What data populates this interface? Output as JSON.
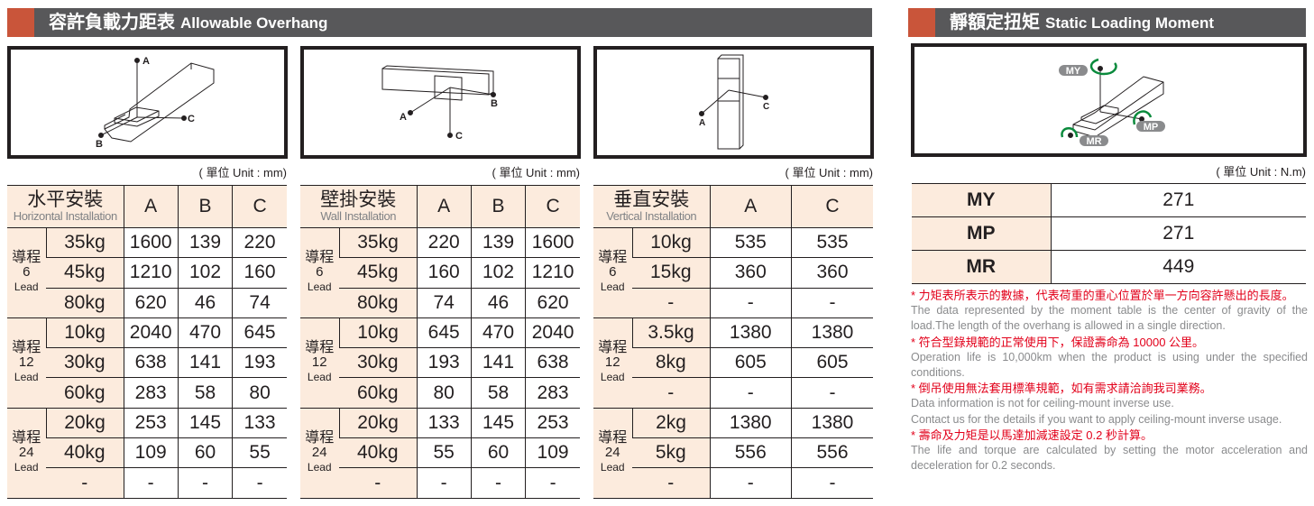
{
  "left_title": {
    "zh": "容許負載力距表",
    "en": "Allowable Overhang"
  },
  "right_title": {
    "zh": "靜額定扭矩",
    "en": "Static Loading Moment"
  },
  "unit_mm": "( 單位 Unit : mm)",
  "unit_nm": "( 單位 Unit : N.m)",
  "diagram_labels": {
    "a": "A",
    "b": "B",
    "c": "C",
    "my": "MY",
    "mp": "MP",
    "mr": "MR"
  },
  "lead_zh": "導程",
  "lead_en": "Lead",
  "tables": [
    {
      "zh": "水平安裝",
      "en": "Horizontal Installation",
      "cols": [
        "A",
        "B",
        "C"
      ],
      "groups": [
        {
          "lead": "6",
          "rows": [
            [
              "35kg",
              "1600",
              "139",
              "220"
            ],
            [
              "45kg",
              "1210",
              "102",
              "160"
            ],
            [
              "80kg",
              "620",
              "46",
              "74"
            ]
          ]
        },
        {
          "lead": "12",
          "rows": [
            [
              "10kg",
              "2040",
              "470",
              "645"
            ],
            [
              "30kg",
              "638",
              "141",
              "193"
            ],
            [
              "60kg",
              "283",
              "58",
              "80"
            ]
          ]
        },
        {
          "lead": "24",
          "rows": [
            [
              "20kg",
              "253",
              "145",
              "133"
            ],
            [
              "40kg",
              "109",
              "60",
              "55"
            ],
            [
              "-",
              "-",
              "-",
              "-"
            ]
          ]
        }
      ]
    },
    {
      "zh": "壁掛安裝",
      "en": "Wall Installation",
      "cols": [
        "A",
        "B",
        "C"
      ],
      "groups": [
        {
          "lead": "6",
          "rows": [
            [
              "35kg",
              "220",
              "139",
              "1600"
            ],
            [
              "45kg",
              "160",
              "102",
              "1210"
            ],
            [
              "80kg",
              "74",
              "46",
              "620"
            ]
          ]
        },
        {
          "lead": "12",
          "rows": [
            [
              "10kg",
              "645",
              "470",
              "2040"
            ],
            [
              "30kg",
              "193",
              "141",
              "638"
            ],
            [
              "60kg",
              "80",
              "58",
              "283"
            ]
          ]
        },
        {
          "lead": "24",
          "rows": [
            [
              "20kg",
              "133",
              "145",
              "253"
            ],
            [
              "40kg",
              "55",
              "60",
              "109"
            ],
            [
              "-",
              "-",
              "-",
              "-"
            ]
          ]
        }
      ]
    },
    {
      "zh": "垂直安裝",
      "en": "Vertical Installation",
      "cols": [
        "A",
        "C"
      ],
      "groups": [
        {
          "lead": "6",
          "rows": [
            [
              "10kg",
              "535",
              "535"
            ],
            [
              "15kg",
              "360",
              "360"
            ],
            [
              "-",
              "-",
              "-"
            ]
          ]
        },
        {
          "lead": "12",
          "rows": [
            [
              "3.5kg",
              "1380",
              "1380"
            ],
            [
              "8kg",
              "605",
              "605"
            ],
            [
              "-",
              "-",
              "-"
            ]
          ]
        },
        {
          "lead": "24",
          "rows": [
            [
              "2kg",
              "1380",
              "1380"
            ],
            [
              "5kg",
              "556",
              "556"
            ],
            [
              "-",
              "-",
              "-"
            ]
          ]
        }
      ]
    }
  ],
  "moments": [
    {
      "label": "MY",
      "value": "271"
    },
    {
      "label": "MP",
      "value": "271"
    },
    {
      "label": "MR",
      "value": "449"
    }
  ],
  "notes": [
    {
      "zh": "* 力矩表所表示的數據，代表荷重的重心位置於單一方向容許懸出的長度。",
      "en": "The data represented by the moment table is the center of gravity of the load.The length of the overhang is allowed in a single direction."
    },
    {
      "zh": "* 符合型錄規範的正常使用下，保證壽命為 10000 公里。",
      "en": "Operation life is 10,000km when the product is using under the specified conditions."
    },
    {
      "zh": "* 倒吊使用無法套用標準規範，如有需求請洽詢我司業務。",
      "en": "Data information is not for ceiling-mount inverse use.",
      "en2": "Contact us for the details if you want to apply ceiling-mount inverse usage."
    },
    {
      "zh": "* 壽命及力矩是以馬達加減速設定 0.2 秒計算。",
      "en": "The life and torque are calculated by setting the motor acceleration and deceleration for 0.2 seconds."
    }
  ],
  "colors": {
    "accent": "#c9553a",
    "title_bg": "#58585a",
    "header_bg": "#fcebdd",
    "note_red": "#e2001a",
    "arrow_green": "#0a8a3c"
  }
}
